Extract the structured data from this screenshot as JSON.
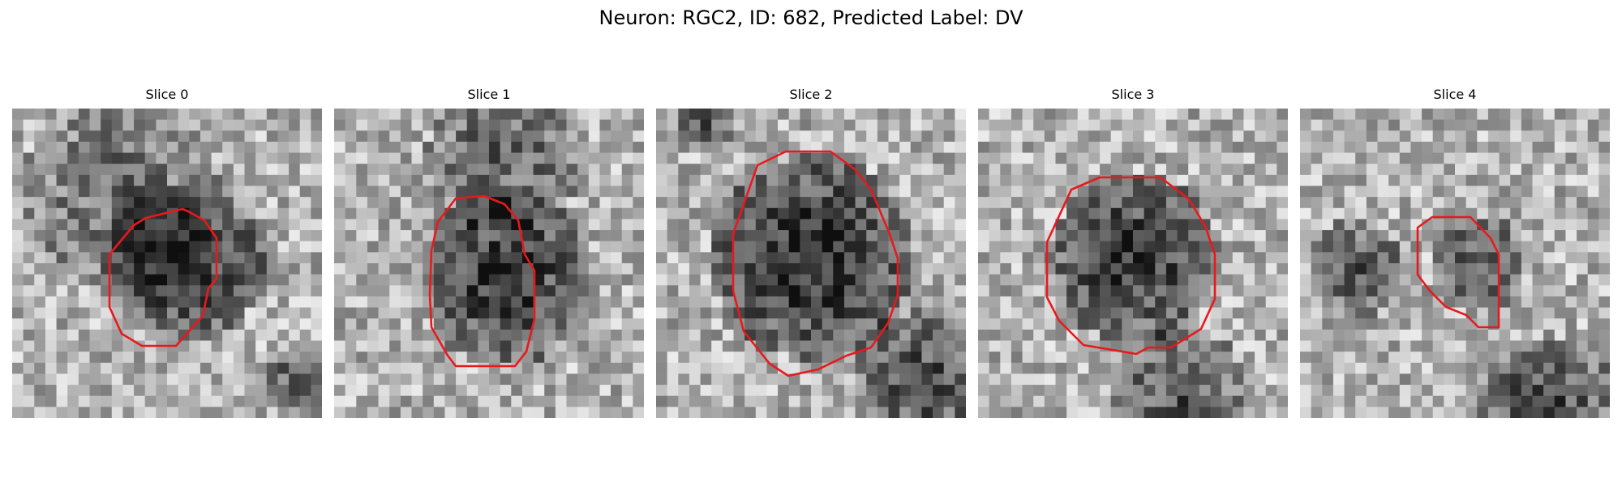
{
  "figure": {
    "title": "Neuron: RGC2, ID: 682, Predicted Label: DV",
    "contour_color": "#e8191d",
    "colormap": "grayscale"
  },
  "panels": [
    {
      "title": "Slice 0"
    },
    {
      "title": "Slice 1"
    },
    {
      "title": "Slice 2"
    },
    {
      "title": "Slice 3"
    },
    {
      "title": "Slice 4"
    }
  ]
}
